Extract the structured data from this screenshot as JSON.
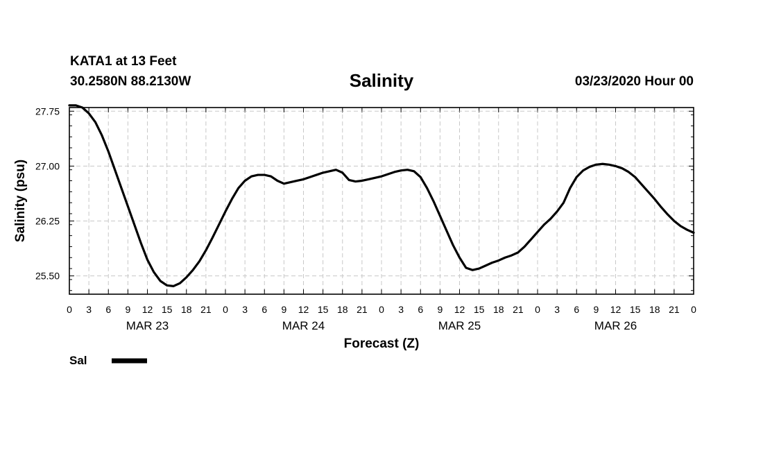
{
  "header": {
    "station": "KATA1 at 13 Feet",
    "location": "30.2580N 88.2130W",
    "title": "Salinity",
    "datetime": "03/23/2020 Hour 00"
  },
  "legend": {
    "label": "Sal"
  },
  "chart_data": {
    "type": "line",
    "title": "Salinity",
    "xlabel": "Forecast (Z)",
    "ylabel": "Salinity (psu)",
    "ylim": [
      25.25,
      27.8
    ],
    "xlim": [
      0,
      96
    ],
    "yticks": [
      "27.75",
      "27.00",
      "26.25",
      "25.50"
    ],
    "xtick_labels": [
      "0",
      "3",
      "6",
      "9",
      "12",
      "15",
      "18",
      "21",
      "0",
      "3",
      "6",
      "9",
      "12",
      "15",
      "18",
      "21",
      "0",
      "3",
      "6",
      "9",
      "12",
      "15",
      "18",
      "21",
      "0",
      "3",
      "6",
      "9",
      "12",
      "15",
      "18",
      "21",
      "0"
    ],
    "day_labels": [
      "MAR 23",
      "MAR 24",
      "MAR 25",
      "MAR 26"
    ],
    "grid": true,
    "legend_position": "bottom-left",
    "series": [
      {
        "name": "Sal",
        "color": "#000000",
        "x": [
          0,
          1,
          2,
          3,
          4,
          5,
          6,
          7,
          8,
          9,
          10,
          11,
          12,
          13,
          14,
          15,
          16,
          17,
          18,
          19,
          20,
          21,
          22,
          23,
          24,
          25,
          26,
          27,
          28,
          29,
          30,
          31,
          32,
          33,
          34,
          35,
          36,
          37,
          38,
          39,
          40,
          41,
          42,
          43,
          44,
          45,
          46,
          47,
          48,
          49,
          50,
          51,
          52,
          53,
          54,
          55,
          56,
          57,
          58,
          59,
          60,
          61,
          62,
          63,
          64,
          65,
          66,
          67,
          68,
          69,
          70,
          71,
          72,
          73,
          74,
          75,
          76,
          77,
          78,
          79,
          80,
          81,
          82,
          83,
          84,
          85,
          86,
          87,
          88,
          89,
          90,
          91,
          92,
          93,
          94,
          95,
          96
        ],
        "values": [
          27.83,
          27.83,
          27.8,
          27.72,
          27.6,
          27.42,
          27.2,
          26.95,
          26.7,
          26.45,
          26.2,
          25.95,
          25.72,
          25.55,
          25.43,
          25.37,
          25.36,
          25.4,
          25.48,
          25.58,
          25.7,
          25.85,
          26.02,
          26.2,
          26.38,
          26.55,
          26.7,
          26.8,
          26.86,
          26.88,
          26.88,
          26.86,
          26.8,
          26.76,
          26.78,
          26.8,
          26.82,
          26.85,
          26.88,
          26.91,
          26.93,
          26.95,
          26.91,
          26.81,
          26.79,
          26.8,
          26.82,
          26.84,
          26.86,
          26.89,
          26.92,
          26.94,
          26.95,
          26.93,
          26.85,
          26.7,
          26.52,
          26.32,
          26.12,
          25.92,
          25.75,
          25.61,
          25.58,
          25.6,
          25.64,
          25.68,
          25.71,
          25.75,
          25.78,
          25.82,
          25.9,
          26.0,
          26.1,
          26.2,
          26.28,
          26.38,
          26.5,
          26.7,
          26.85,
          26.94,
          26.99,
          27.02,
          27.03,
          27.02,
          27.0,
          26.97,
          26.92,
          26.85,
          26.75,
          26.65,
          26.55,
          26.44,
          26.34,
          26.25,
          26.18,
          26.13,
          26.09
        ]
      }
    ]
  }
}
